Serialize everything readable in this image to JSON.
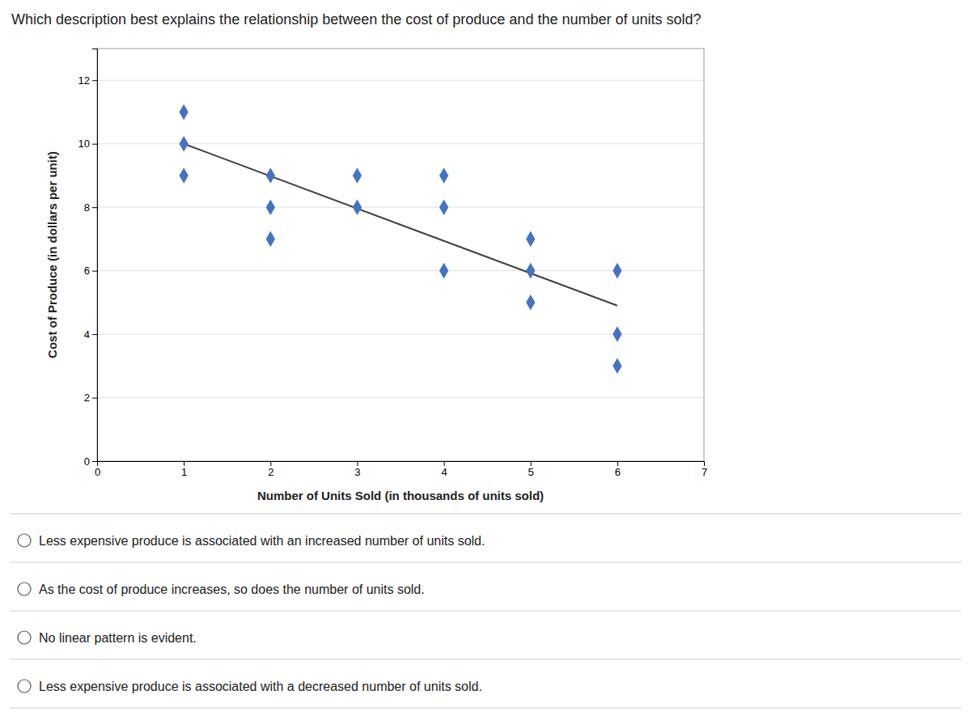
{
  "chart_data": {
    "type": "scatter",
    "title": "Which description best explains the relationship between the cost of produce and the number of units sold?",
    "xlabel": "Number of Units Sold (in thousands of units sold)",
    "ylabel": "Cost of Produce (in dollars per unit)",
    "series": [
      {
        "type": "scatter",
        "marker": "diamond",
        "color": "#4472C4",
        "x": [
          1,
          1,
          1,
          2,
          2,
          2,
          3,
          3,
          4,
          4,
          4,
          5,
          5,
          5,
          6,
          6,
          6
        ],
        "values": [
          11,
          10,
          9,
          9,
          8,
          7,
          9,
          8,
          9,
          8,
          6,
          7,
          6,
          5,
          6,
          4,
          3
        ]
      },
      {
        "type": "line",
        "color": "#404040",
        "x": [
          1.0,
          6.0
        ],
        "values": [
          10.0,
          4.9
        ]
      }
    ],
    "xlim": [
      0,
      7
    ],
    "ylim": [
      0,
      13
    ],
    "xticks": [
      0,
      1,
      2,
      3,
      4,
      5,
      6,
      7
    ],
    "yticks": [
      0,
      2,
      4,
      6,
      8,
      10,
      12
    ],
    "grid": "y",
    "annotations": [
      "Less expensive produce is associated with an increased number of units sold.",
      "As the cost of produce increases, so does the number of units sold.",
      "No linear pattern is evident.",
      "Less expensive produce is associated with a decreased number of units sold."
    ]
  }
}
